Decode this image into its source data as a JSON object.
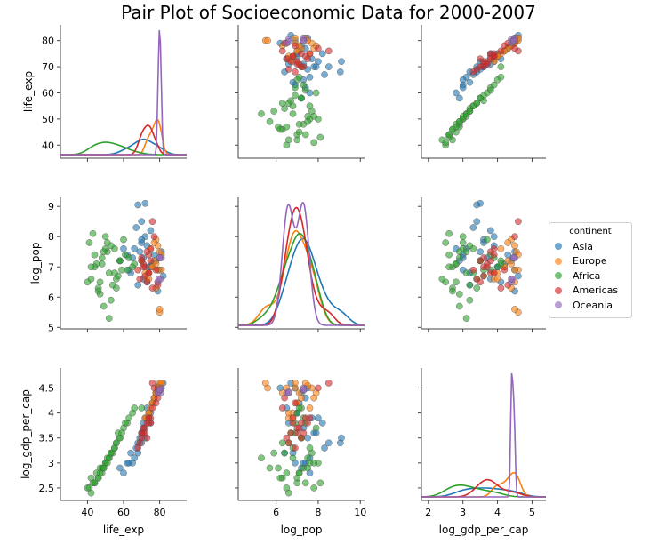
{
  "title": "Pair Plot of Socioeconomic Data for 2000-2007",
  "legend": {
    "title": "continent",
    "items": [
      {
        "label": "Asia",
        "color": "#1f77b4"
      },
      {
        "label": "Europe",
        "color": "#ff7f0e"
      },
      {
        "label": "Africa",
        "color": "#2ca02c"
      },
      {
        "label": "Americas",
        "color": "#d62728"
      },
      {
        "label": "Oceania",
        "color": "#9467bd"
      }
    ]
  },
  "chart_data": {
    "type": "scatter",
    "variables": [
      "life_exp",
      "log_pop",
      "log_gdp_per_cap"
    ],
    "axes": {
      "life_exp": {
        "label": "life_exp",
        "lim": [
          25,
          95
        ],
        "ticks": [
          40,
          60,
          80
        ],
        "ylim": [
          35,
          86
        ],
        "yticks": [
          40,
          50,
          60,
          70,
          80
        ]
      },
      "log_pop": {
        "label": "log_pop",
        "lim": [
          4.2,
          10.2
        ],
        "ticks": [
          6,
          8,
          10
        ],
        "ylim": [
          4.95,
          9.3
        ],
        "yticks": [
          5,
          6,
          7,
          8,
          9
        ]
      },
      "log_gdp_per_cap": {
        "label": "log_gdp_per_cap",
        "lim": [
          1.8,
          5.4
        ],
        "ticks": [
          2,
          3,
          4,
          5
        ],
        "ylim": [
          2.25,
          4.9
        ],
        "yticks": [
          2.5,
          3.0,
          3.5,
          4.0,
          4.5
        ]
      }
    },
    "diagonal": "kde",
    "grid": false,
    "legend_position": "right",
    "groups": {
      "Asia": {
        "life_exp": [
          68,
          72,
          75,
          70,
          66,
          62,
          58,
          72,
          76,
          80,
          71,
          69,
          64,
          73,
          78,
          82,
          67,
          70,
          74,
          60,
          65,
          71,
          77,
          79,
          63,
          70,
          73,
          68,
          75,
          81
        ],
        "log_pop": [
          9.05,
          9.1,
          8.2,
          7.8,
          7.6,
          7.4,
          7.2,
          8.0,
          7.1,
          6.9,
          7.3,
          7.5,
          6.8,
          6.5,
          7.2,
          6.7,
          8.3,
          7.9,
          7.0,
          7.6,
          7.3,
          6.6,
          7.4,
          6.2,
          6.9,
          8.5,
          7.7,
          6.4,
          7.0,
          7.5
        ],
        "log_gdp_per_cap": [
          3.4,
          3.5,
          3.8,
          3.6,
          3.1,
          3.0,
          2.9,
          3.9,
          4.2,
          4.5,
          3.7,
          3.5,
          3.2,
          4.1,
          4.4,
          4.6,
          3.3,
          3.6,
          4.0,
          2.8,
          3.0,
          3.8,
          4.3,
          4.5,
          3.0,
          3.4,
          3.9,
          3.2,
          4.0,
          4.5
        ]
      },
      "Europe": {
        "life_exp": [
          78,
          79,
          80,
          76,
          74,
          77,
          81,
          79,
          75,
          73,
          80,
          78,
          77,
          76,
          79,
          81,
          74,
          78,
          80,
          72
        ],
        "log_pop": [
          7.9,
          7.7,
          7.5,
          7.0,
          6.8,
          7.2,
          6.9,
          6.5,
          7.6,
          6.6,
          5.5,
          6.3,
          7.8,
          7.0,
          6.9,
          7.4,
          6.6,
          7.1,
          5.6,
          6.8
        ],
        "log_gdp_per_cap": [
          4.4,
          4.5,
          4.55,
          4.2,
          4.0,
          4.3,
          4.6,
          4.5,
          4.1,
          3.9,
          4.6,
          4.4,
          4.3,
          4.2,
          4.5,
          4.6,
          4.0,
          4.4,
          4.5,
          3.9
        ]
      },
      "Africa": {
        "life_exp": [
          45,
          48,
          52,
          55,
          42,
          40,
          50,
          58,
          62,
          47,
          44,
          53,
          56,
          60,
          49,
          46,
          51,
          43,
          57,
          65,
          70,
          54,
          41,
          48,
          52,
          59,
          63,
          46,
          50,
          55,
          44,
          61,
          47,
          53,
          58,
          42,
          66,
          49,
          56,
          51
        ],
        "log_pop": [
          7.1,
          7.3,
          6.8,
          7.6,
          7.0,
          6.5,
          8.0,
          7.2,
          6.9,
          6.1,
          7.4,
          7.7,
          6.6,
          7.9,
          5.7,
          6.3,
          7.5,
          8.1,
          6.7,
          7.0,
          7.2,
          6.4,
          7.8,
          7.1,
          5.3,
          6.9,
          7.3,
          6.2,
          7.6,
          6.8,
          7.0,
          7.4,
          6.5,
          5.9,
          7.2,
          6.6,
          7.1,
          7.5,
          6.3,
          7.8
        ],
        "log_gdp_per_cap": [
          2.8,
          2.9,
          3.1,
          3.3,
          2.7,
          2.5,
          3.0,
          3.5,
          3.8,
          2.9,
          2.6,
          3.2,
          3.4,
          3.7,
          2.9,
          2.7,
          3.1,
          2.6,
          3.6,
          4.0,
          4.1,
          3.2,
          2.5,
          2.8,
          3.1,
          3.6,
          3.9,
          2.7,
          3.0,
          3.3,
          2.6,
          3.8,
          2.8,
          3.2,
          3.5,
          2.4,
          4.1,
          2.9,
          3.4,
          3.0
        ]
      },
      "Americas": {
        "life_exp": [
          72,
          74,
          76,
          70,
          73,
          75,
          78,
          71,
          69,
          77,
          74,
          72,
          75,
          79,
          68,
          73,
          76,
          71,
          74,
          70
        ],
        "log_pop": [
          7.0,
          6.8,
          8.5,
          7.3,
          6.5,
          7.6,
          6.9,
          7.1,
          6.6,
          8.0,
          7.4,
          6.7,
          7.2,
          6.4,
          6.9,
          7.5,
          6.3,
          7.0,
          6.8,
          7.2
        ],
        "log_gdp_per_cap": [
          3.7,
          3.8,
          4.6,
          3.6,
          3.5,
          3.9,
          4.2,
          3.7,
          3.4,
          4.5,
          3.9,
          3.6,
          3.8,
          4.3,
          3.3,
          3.8,
          4.1,
          3.6,
          3.9,
          3.5
        ]
      },
      "Oceania": {
        "life_exp": [
          79,
          80,
          80.5,
          81,
          79.5,
          80
        ],
        "log_pop": [
          6.5,
          7.3,
          6.6,
          7.3,
          6.6,
          7.3
        ],
        "log_gdp_per_cap": [
          4.4,
          4.45,
          4.4,
          4.5,
          4.42,
          4.47
        ]
      }
    }
  }
}
